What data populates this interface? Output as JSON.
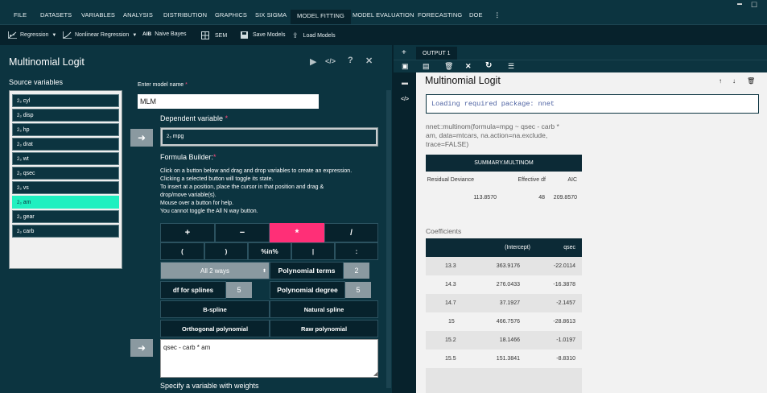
{
  "menu": {
    "items": [
      "FILE",
      "DATASETS",
      "VARIABLES",
      "ANALYSIS",
      "DISTRIBUTION",
      "GRAPHICS",
      "SIX SIGMA",
      "MODEL FITTING",
      "MODEL EVALUATION",
      "FORECASTING",
      "DOE"
    ],
    "active": "MODEL FITTING",
    "more": "⋮"
  },
  "window_controls": {
    "minimize": "▬",
    "maximize": "☐"
  },
  "toolbar": {
    "regression": "Regression",
    "nonlinear": "Nonlinear Regression",
    "naive_prefix": "AIB",
    "naive": "Naive Bayes",
    "sem": "SEM",
    "save": "Save Models",
    "load": "Load Models"
  },
  "dialog": {
    "title": "Multinomial Logit",
    "source_label": "Source variables",
    "variables": [
      "cyl",
      "disp",
      "hp",
      "drat",
      "wt",
      "qsec",
      "vs",
      "am",
      "gear",
      "carb"
    ],
    "selected_variable": "am",
    "var_prefix": "2₃",
    "model_name_label": "Enter model name",
    "model_name_value": "MLM",
    "dependent_label": "Dependent variable",
    "dependent_value": "mpg",
    "required_mark": "*",
    "formula_label": "Formula Builder:",
    "formula_help": [
      "Click on a button below and drag and drop variables to create an expression.",
      "Clicking a selected button will toggle its state.",
      "To insert at a position, place the cursor in that position and drag &",
      "drop/move variable(s).",
      "Mouse over a button for help.",
      "You cannot toggle the All N way button."
    ],
    "ops": {
      "plus": "+",
      "minus": "−",
      "times": "*",
      "divide": "/",
      "lparen": "(",
      "rparen": ")",
      "in": "%in%",
      "pipe": "|",
      "colon": ":"
    },
    "all_ways": "All 2 ways",
    "poly_terms_label": "Polynomial terms",
    "poly_terms_value": "2",
    "df_splines_label": "df for splines",
    "df_splines_value": "5",
    "poly_degree_label": "Polynomial degree",
    "poly_degree_value": "5",
    "bspline": "B-spline",
    "natural_spline": "Natural spline",
    "orth_poly": "Orthogonal polynomial",
    "raw_poly": "Raw polynomial",
    "formula_value": "qsec  - carb  * am",
    "weights_label": "Specify a variable with weights",
    "arrow": "➜"
  },
  "output": {
    "tab": "OUTPUT 1",
    "add": "+",
    "title": "Multinomial Logit",
    "code_icon": "</>",
    "loading": "Loading required package: nnet",
    "call": [
      "nnet::multinom(formula=mpg ~ qsec - carb *",
      "am, data=mtcars, na.action=na.exclude,",
      "trace=FALSE)"
    ],
    "summary": {
      "header": "SUMMARY.MULTINOM",
      "cols": [
        "Residual Deviance",
        "Effective df",
        "AIC"
      ],
      "values": [
        "113.8570",
        "48",
        "209.8570"
      ]
    },
    "coef_label": "Coefficients",
    "coef_cols": [
      "",
      "(Intercept)",
      "qsec"
    ],
    "coef_rows": [
      [
        "13.3",
        "363.9176",
        "-22.0114"
      ],
      [
        "14.3",
        "276.0433",
        "-16.3878"
      ],
      [
        "14.7",
        "37.1927",
        "-2.1457"
      ],
      [
        "15",
        "466.7576",
        "-28.8613"
      ],
      [
        "15.2",
        "18.1466",
        "-1.0197"
      ],
      [
        "15.5",
        "151.3841",
        "-8.8310"
      ]
    ]
  }
}
